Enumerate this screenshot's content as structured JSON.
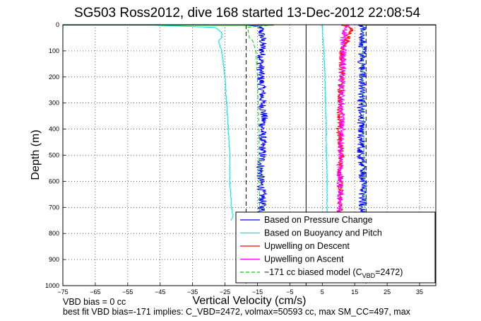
{
  "chart_data": {
    "type": "line",
    "title": "SG503 Ross2012, dive 168 started 13-Dec-2012 22:08:54",
    "xlabel": "Vertical Velocity (cm/s)",
    "ylabel": "Depth (m)",
    "xlim": [
      -75,
      40
    ],
    "ylim": [
      0,
      1000
    ],
    "y_reversed": true,
    "x_ticks": [
      -75,
      -65,
      -55,
      -45,
      -35,
      -25,
      -15,
      -5,
      5,
      15,
      25,
      35
    ],
    "y_ticks": [
      0,
      100,
      200,
      300,
      400,
      500,
      600,
      700,
      800,
      900,
      1000
    ],
    "grid": "dotted",
    "legend_position": "bottom-right",
    "series": [
      {
        "name": "Based on Pressure Change (descent)",
        "color": "#0000ff",
        "depth": [
          0,
          5,
          10,
          20,
          50,
          100,
          150,
          200,
          250,
          300,
          350,
          400,
          450,
          500,
          550,
          600,
          650,
          700,
          730,
          740
        ],
        "velocity": [
          -20,
          -16,
          -14,
          -14,
          -13.5,
          -13.5,
          -14,
          -14,
          -13.5,
          -13.5,
          -13,
          -13.5,
          -13.5,
          -13.5,
          -14,
          -14,
          -13.5,
          -13.5,
          -14,
          -14
        ]
      },
      {
        "name": "Based on Pressure Change (ascent)",
        "color": "#0000ff",
        "depth": [
          740,
          700,
          650,
          600,
          550,
          500,
          450,
          400,
          350,
          300,
          250,
          200,
          150,
          100,
          50,
          20,
          5,
          0
        ],
        "velocity": [
          17.5,
          17.5,
          17.5,
          17.5,
          17.5,
          17,
          17,
          17,
          17,
          17,
          17,
          17.5,
          17,
          17.5,
          17.5,
          17.5,
          17.5,
          17
        ]
      },
      {
        "name": "Based on Buoyancy and Pitch (descent)",
        "color": "#00e5e5",
        "depth": [
          0,
          5,
          10,
          20,
          30,
          50,
          60,
          100,
          150,
          200,
          300,
          400,
          500,
          600,
          700,
          735,
          745,
          750
        ],
        "velocity": [
          -50,
          -40,
          -28,
          -27,
          -26,
          -26,
          -27,
          -26,
          -25.5,
          -25,
          -24.5,
          -24,
          -23.5,
          -23.5,
          -23,
          -22.5,
          -23,
          -23
        ]
      },
      {
        "name": "Based on Buoyancy and Pitch (ascent)",
        "color": "#00e5e5",
        "depth": [
          750,
          700,
          600,
          500,
          400,
          300,
          200,
          100,
          50,
          10,
          0
        ],
        "velocity": [
          6.5,
          6.5,
          6.5,
          6.3,
          6.2,
          6,
          5.8,
          5.5,
          5.2,
          5,
          5
        ]
      },
      {
        "name": "Upwelling on Descent",
        "color": "#ff0000",
        "depth": [
          0,
          10,
          50,
          100,
          150,
          200,
          250,
          300,
          350,
          400,
          450,
          500,
          550,
          600,
          650,
          700,
          735
        ],
        "velocity": [
          11,
          14,
          13,
          11,
          11,
          11,
          10.5,
          10.5,
          10.5,
          10,
          10.5,
          11,
          10.5,
          10.5,
          10.5,
          10.5,
          11
        ]
      },
      {
        "name": "Upwelling on Ascent",
        "color": "#ff00ff",
        "depth": [
          735,
          700,
          650,
          600,
          550,
          500,
          450,
          400,
          350,
          300,
          250,
          200,
          150,
          100,
          50,
          10,
          0
        ],
        "velocity": [
          10.5,
          10.5,
          10.5,
          10.5,
          10.5,
          10.5,
          11,
          11,
          11,
          11,
          11,
          11,
          11.5,
          11.5,
          11.5,
          12,
          13
        ]
      },
      {
        "name": "-171 cc biased model (C_VBD=2472)",
        "color": "#00cc00",
        "dashed": true,
        "depth": [
          0,
          10,
          50,
          60,
          100,
          200,
          300,
          400,
          500,
          600,
          700,
          745
        ],
        "velocity": [
          -10,
          -18,
          -17.5,
          -16.5,
          -15.5,
          -15,
          -14.8,
          -14.5,
          -14.5,
          -14.5,
          -14.3,
          -14.3
        ]
      },
      {
        "name": "-171 cc biased model (C_VBD=2472) ascent",
        "color": "#00cc00",
        "dashed": true,
        "depth": [
          745,
          700,
          600,
          500,
          400,
          300,
          200,
          100,
          50,
          0
        ],
        "velocity": [
          18,
          18,
          18,
          17.8,
          17.8,
          17.5,
          17.5,
          17.5,
          17.5,
          17.5
        ]
      }
    ],
    "surface_segments": [
      {
        "color": "#0000ff",
        "depth": 1,
        "velocity": [
          -75,
          -10
        ]
      },
      {
        "color": "#00e5e5",
        "depth": 0,
        "velocity": [
          -75,
          -30
        ]
      },
      {
        "color": "#00cc00",
        "depth": 2,
        "velocity": [
          -45,
          -15
        ]
      },
      {
        "color": "#ff0000",
        "depth": 1,
        "velocity": [
          17,
          40
        ]
      }
    ],
    "vertical_reference_lines": [
      {
        "x": -18.5,
        "style": "dashed",
        "color": "#000000"
      },
      {
        "x": 0,
        "style": "solid",
        "color": "#000000"
      },
      {
        "x": 18.5,
        "style": "dashed",
        "color": "#000000"
      }
    ],
    "legend": [
      {
        "label": "Based on Pressure Change",
        "color": "#0000ff",
        "style": "solid"
      },
      {
        "label": "Based on Buoyancy and Pitch",
        "color": "#00e5e5",
        "style": "solid"
      },
      {
        "label": "Upwelling on Descent",
        "color": "#ff0000",
        "style": "solid"
      },
      {
        "label": "Upwelling on Ascent",
        "color": "#ff00ff",
        "style": "solid"
      },
      {
        "label": "−171 cc biased model (C",
        "sub": "VBD",
        "tail": "=2472)",
        "color": "#00cc00",
        "style": "dashed"
      }
    ],
    "footer": [
      "VBD bias = 0 cc",
      "best fit VBD bias=-171 implies: C_VBD=2472, volmax=50593 cc, max SM_CC=497, max"
    ]
  }
}
